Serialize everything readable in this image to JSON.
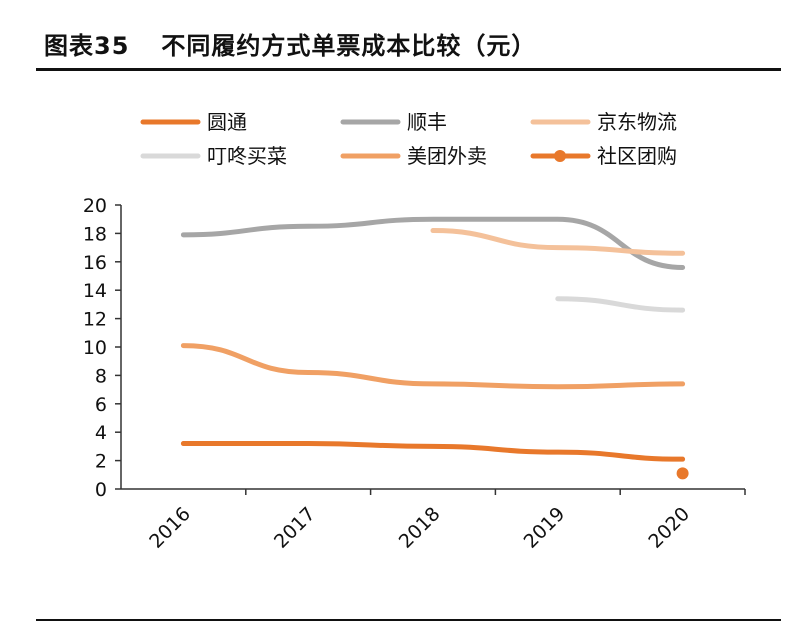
{
  "figure": {
    "label": "图表35",
    "title": "不同履约方式单票成本比较（元）"
  },
  "chart_data": {
    "type": "line",
    "categories": [
      "2016",
      "2017",
      "2018",
      "2019",
      "2020"
    ],
    "ylim": [
      0,
      20
    ],
    "yticks": [
      0,
      2,
      4,
      6,
      8,
      10,
      12,
      14,
      16,
      18,
      20
    ],
    "xlabel": "",
    "ylabel": "",
    "legend_position": "top",
    "grid": false,
    "series": [
      {
        "name": "圆通",
        "values": [
          3.2,
          3.2,
          3.0,
          2.6,
          2.1
        ],
        "color": "#e8782b",
        "marker": "none"
      },
      {
        "name": "顺丰",
        "values": [
          17.9,
          18.5,
          19.0,
          19.0,
          15.6
        ],
        "color": "#a6a6a6",
        "marker": "none"
      },
      {
        "name": "京东物流",
        "values": [
          null,
          null,
          18.2,
          17.0,
          16.6
        ],
        "color": "#f4c19a",
        "marker": "none"
      },
      {
        "name": "叮咚买菜",
        "values": [
          null,
          null,
          null,
          13.4,
          12.6
        ],
        "color": "#d9d9d9",
        "marker": "none"
      },
      {
        "name": "美团外卖",
        "values": [
          10.1,
          8.2,
          7.4,
          7.2,
          7.4
        ],
        "color": "#f0a064",
        "marker": "none"
      },
      {
        "name": "社区团购",
        "values": [
          null,
          null,
          null,
          null,
          1.1
        ],
        "color": "#e8782b",
        "marker": "dot"
      }
    ]
  }
}
